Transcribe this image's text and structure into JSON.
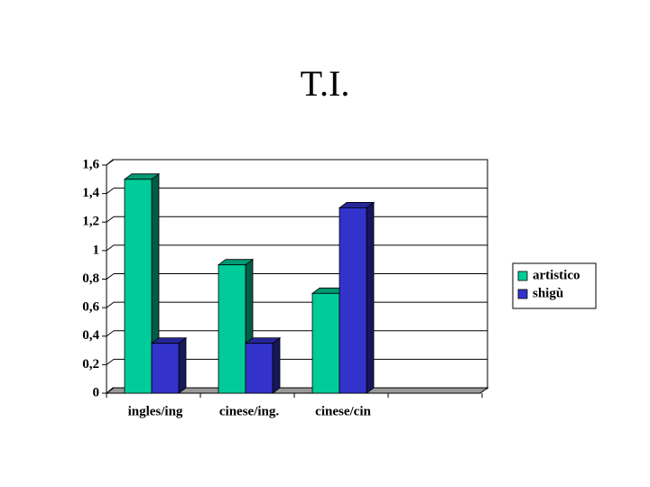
{
  "chart_data": {
    "type": "bar3d",
    "title": "T.I.",
    "categories": [
      "ingles/ing",
      "cinese/ing.",
      "cinese/cin"
    ],
    "series": [
      {
        "name": "artistico",
        "color": "#00cc99",
        "values": [
          1.5,
          0.9,
          0.7
        ]
      },
      {
        "name": "shigù",
        "color": "#3333cc",
        "values": [
          0.35,
          0.35,
          1.3
        ]
      }
    ],
    "ylim": [
      0,
      1.6
    ],
    "yticks": [
      0,
      {
        "value": 0.2,
        "label": "0,2"
      },
      {
        "value": 0.4,
        "label": "0,4"
      },
      {
        "value": 0.6,
        "label": "0,6"
      },
      {
        "value": 0.8,
        "label": "0,8"
      },
      1,
      {
        "value": 1.2,
        "label": "1,2"
      },
      {
        "value": 1.4,
        "label": "1,4"
      },
      {
        "value": 1.6,
        "label": "1,6"
      }
    ],
    "grid": true,
    "legend": "right"
  }
}
